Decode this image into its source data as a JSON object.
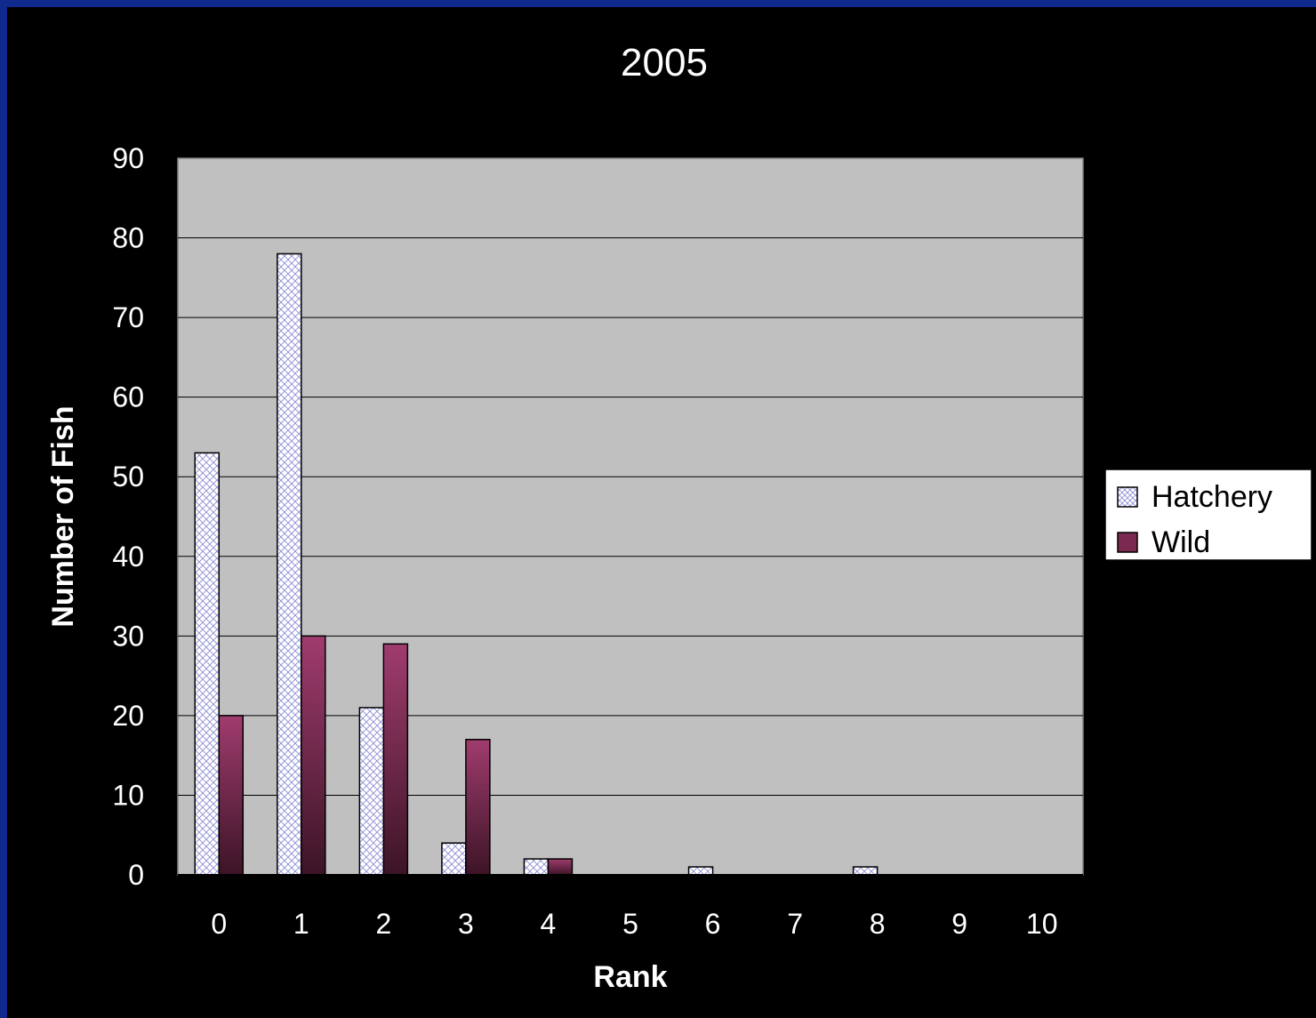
{
  "chart_data": {
    "type": "bar",
    "title": "2005",
    "xlabel": "Rank",
    "ylabel": "Number of Fish",
    "categories": [
      "0",
      "1",
      "2",
      "3",
      "4",
      "5",
      "6",
      "7",
      "8",
      "9",
      "10"
    ],
    "series": [
      {
        "name": "Hatchery",
        "values": [
          53,
          78,
          21,
          4,
          2,
          0,
          1,
          0,
          1,
          0,
          0
        ]
      },
      {
        "name": "Wild",
        "values": [
          20,
          30,
          29,
          17,
          2,
          0,
          0,
          0,
          0,
          0,
          0
        ]
      }
    ],
    "ylim": [
      0,
      90
    ],
    "yticks": [
      "0",
      "10",
      "20",
      "30",
      "40",
      "50",
      "60",
      "70",
      "80",
      "90"
    ],
    "grid": true,
    "legend_position": "right",
    "colors": {
      "background": "#000000",
      "frame": "#0f2a8c",
      "plot_area": "#c0c0c0",
      "hatchery_fill": "#ffffff",
      "hatchery_pattern": "#8c8cd6",
      "wild_fill": "#9e3a6b",
      "wild_fill_dark": "#3c1426",
      "text": "#ffffff"
    }
  }
}
